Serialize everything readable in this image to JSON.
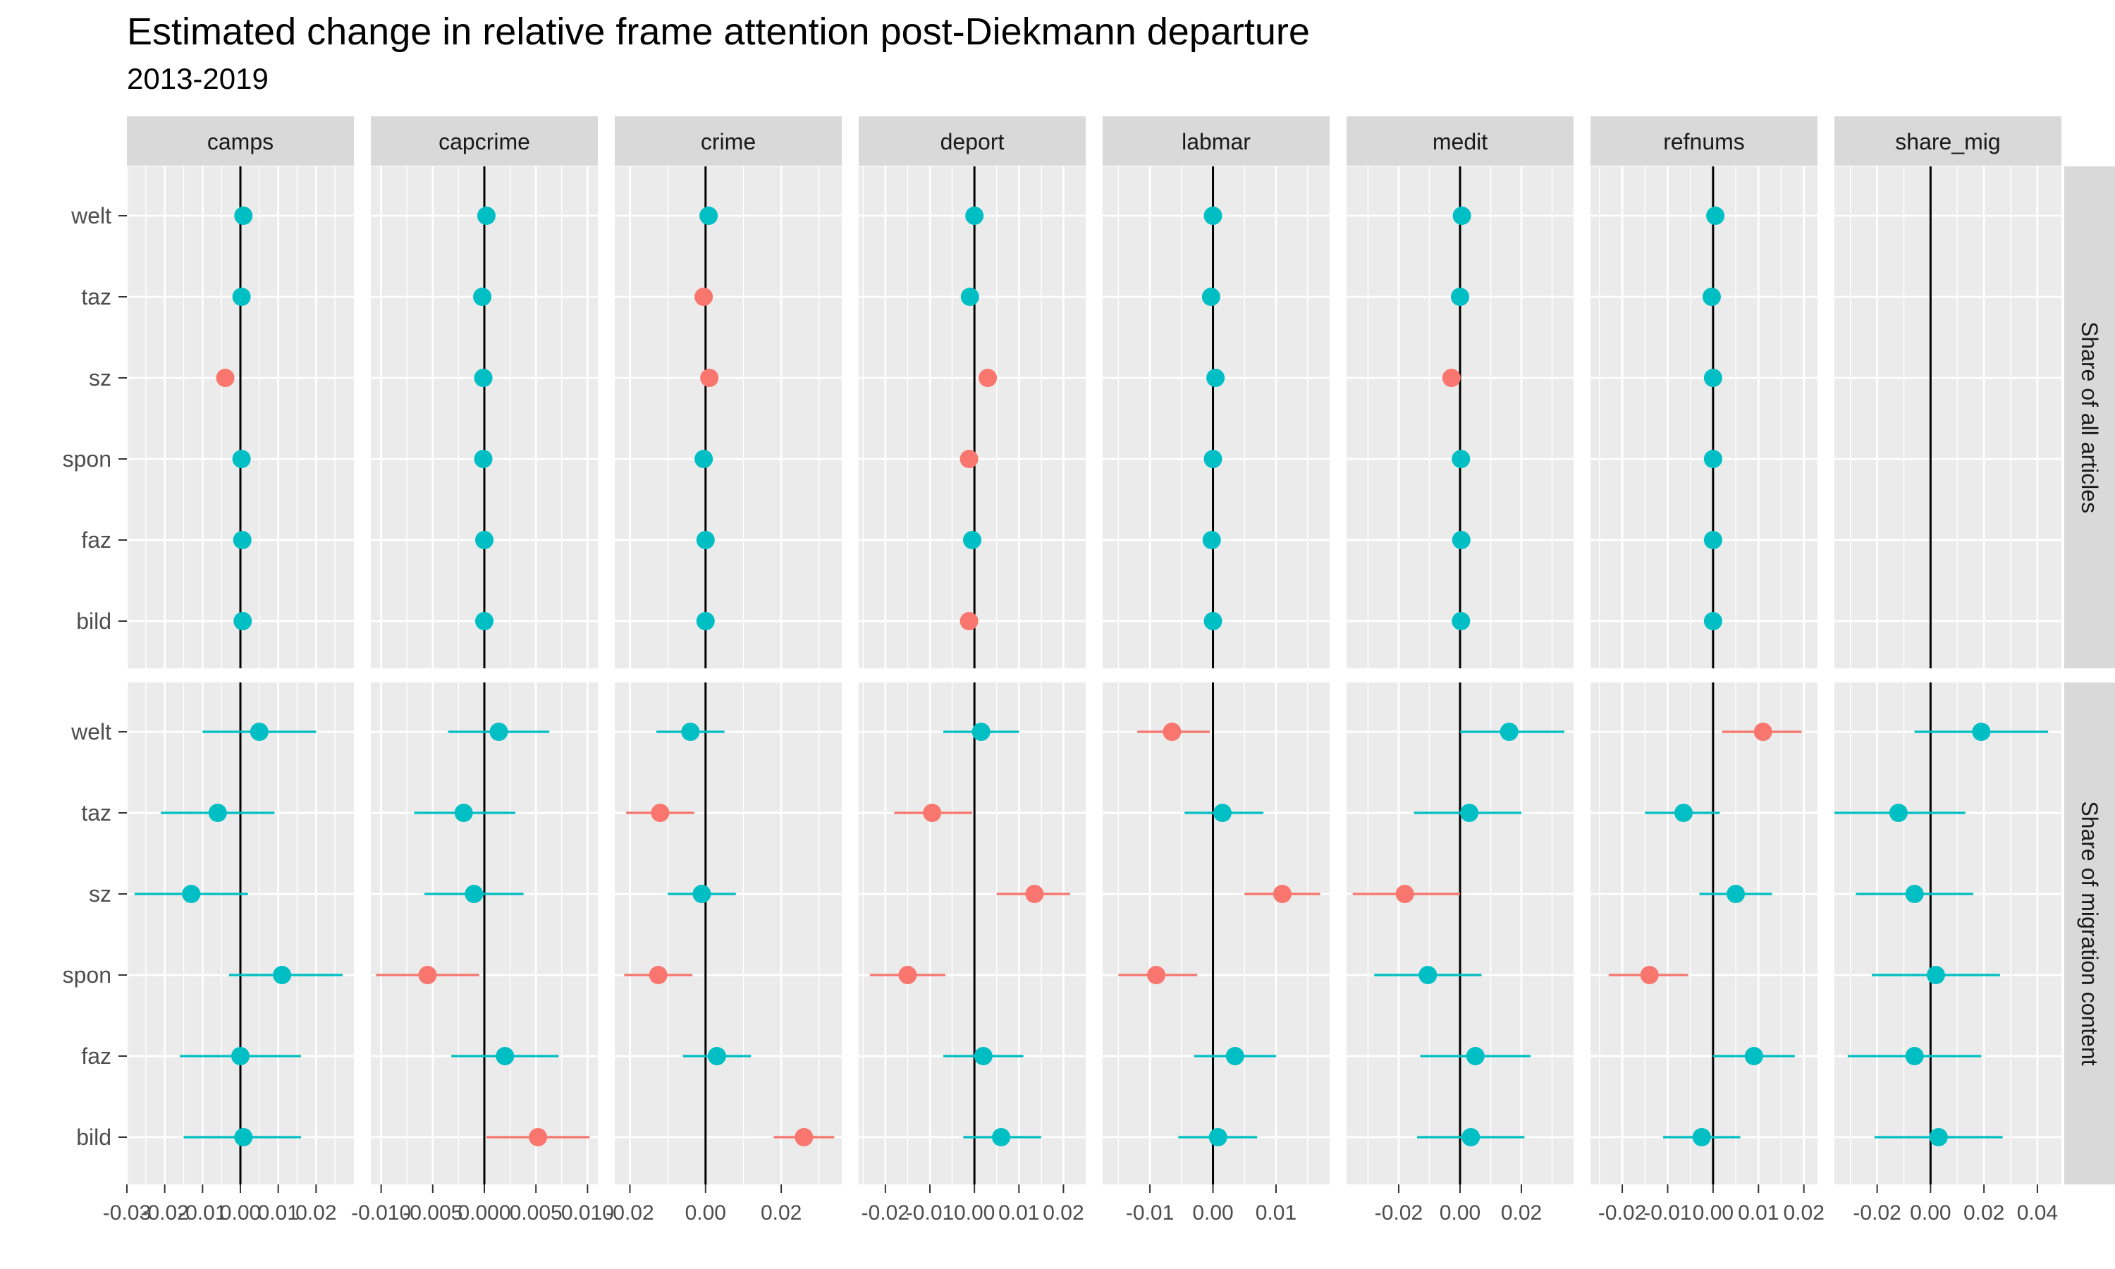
{
  "chart_data": {
    "type": "scatter",
    "title": "Estimated change in relative frame attention post-Diekmann departure",
    "subtitle": "2013-2019",
    "columns": [
      "camps",
      "capcrime",
      "crime",
      "deport",
      "labmar",
      "medit",
      "refnums",
      "share_mig"
    ],
    "rows": [
      "Share of all articles",
      "Share of migration content"
    ],
    "outlets": [
      "welt",
      "taz",
      "sz",
      "spon",
      "faz",
      "bild"
    ],
    "colors": {
      "significant": "#F8766D",
      "not_significant": "#00BFC4",
      "strip": "#D9D9D9",
      "panel": "#EBEBEB",
      "grid": "#FFFFFF"
    },
    "xlim": [
      [
        -0.03,
        0.03
      ],
      [
        -0.011,
        0.011
      ],
      [
        -0.024,
        0.036
      ],
      [
        -0.026,
        0.025
      ],
      [
        -0.0175,
        0.0185
      ],
      [
        -0.037,
        0.037
      ],
      [
        -0.027,
        0.023
      ],
      [
        -0.036,
        0.049
      ]
    ],
    "x_ticks": [
      [
        "-0.03",
        "-0.02",
        "-0.01",
        "0.00",
        "0.01",
        "0.02"
      ],
      [
        "-0.010",
        "-0.005",
        "0.000",
        "0.005",
        "0.010"
      ],
      [
        "-0.02",
        "0.00",
        "0.02"
      ],
      [
        "-0.02",
        "-0.01",
        "0.00",
        "0.01",
        "0.02"
      ],
      [
        "-0.01",
        "0.00",
        "0.01"
      ],
      [
        "-0.02",
        "0.00",
        "0.02"
      ],
      [
        "-0.02",
        "-0.01",
        "0.00",
        "0.01",
        "0.02"
      ],
      [
        "-0.02",
        "0.00",
        "0.02",
        "0.04"
      ]
    ],
    "panels": {
      "camps": {
        "Share of all articles": [
          {
            "outlet": "welt",
            "est": 0.0008,
            "lo": 0.0008,
            "hi": 0.0008,
            "sig": false
          },
          {
            "outlet": "taz",
            "est": 0.0003,
            "lo": 0.0003,
            "hi": 0.0003,
            "sig": false
          },
          {
            "outlet": "sz",
            "est": -0.004,
            "lo": -0.004,
            "hi": -0.004,
            "sig": true
          },
          {
            "outlet": "spon",
            "est": 0.0003,
            "lo": 0.0003,
            "hi": 0.0003,
            "sig": false
          },
          {
            "outlet": "faz",
            "est": 0.0005,
            "lo": 0.0005,
            "hi": 0.0005,
            "sig": false
          },
          {
            "outlet": "bild",
            "est": 0.0006,
            "lo": 0.0006,
            "hi": 0.0006,
            "sig": false
          }
        ],
        "Share of migration content": [
          {
            "outlet": "welt",
            "est": 0.005,
            "lo": -0.01,
            "hi": 0.02,
            "sig": false
          },
          {
            "outlet": "taz",
            "est": -0.006,
            "lo": -0.021,
            "hi": 0.009,
            "sig": false
          },
          {
            "outlet": "sz",
            "est": -0.013,
            "lo": -0.028,
            "hi": 0.002,
            "sig": false
          },
          {
            "outlet": "spon",
            "est": 0.011,
            "lo": -0.003,
            "hi": 0.027,
            "sig": false
          },
          {
            "outlet": "faz",
            "est": 0.0,
            "lo": -0.016,
            "hi": 0.016,
            "sig": false
          },
          {
            "outlet": "bild",
            "est": 0.0008,
            "lo": -0.015,
            "hi": 0.016,
            "sig": false
          }
        ]
      },
      "capcrime": {
        "Share of all articles": [
          {
            "outlet": "welt",
            "est": 0.0002,
            "lo": 0.0002,
            "hi": 0.0002,
            "sig": false
          },
          {
            "outlet": "taz",
            "est": -0.0002,
            "lo": -0.0002,
            "hi": -0.0002,
            "sig": false
          },
          {
            "outlet": "sz",
            "est": -0.0001,
            "lo": -0.0001,
            "hi": -0.0001,
            "sig": false
          },
          {
            "outlet": "spon",
            "est": -0.0001,
            "lo": -0.0001,
            "hi": -0.0001,
            "sig": false
          },
          {
            "outlet": "faz",
            "est": 0.0,
            "lo": 0.0,
            "hi": 0.0,
            "sig": false
          },
          {
            "outlet": "bild",
            "est": 0.0,
            "lo": 0.0,
            "hi": 0.0,
            "sig": false
          }
        ],
        "Share of migration content": [
          {
            "outlet": "welt",
            "est": 0.0014,
            "lo": -0.0035,
            "hi": 0.0063,
            "sig": false
          },
          {
            "outlet": "taz",
            "est": -0.002,
            "lo": -0.0068,
            "hi": 0.003,
            "sig": false
          },
          {
            "outlet": "sz",
            "est": -0.001,
            "lo": -0.0058,
            "hi": 0.0038,
            "sig": false
          },
          {
            "outlet": "spon",
            "est": -0.0055,
            "lo": -0.0105,
            "hi": -0.0005,
            "sig": true
          },
          {
            "outlet": "faz",
            "est": 0.002,
            "lo": -0.0032,
            "hi": 0.0072,
            "sig": false
          },
          {
            "outlet": "bild",
            "est": 0.0052,
            "lo": 0.0002,
            "hi": 0.0102,
            "sig": true
          }
        ]
      },
      "crime": {
        "Share of all articles": [
          {
            "outlet": "welt",
            "est": 0.0008,
            "lo": 0.0008,
            "hi": 0.0008,
            "sig": false
          },
          {
            "outlet": "taz",
            "est": -0.0005,
            "lo": -0.0005,
            "hi": -0.0005,
            "sig": true
          },
          {
            "outlet": "sz",
            "est": 0.001,
            "lo": 0.001,
            "hi": 0.001,
            "sig": true
          },
          {
            "outlet": "spon",
            "est": -0.0005,
            "lo": -0.0005,
            "hi": -0.0005,
            "sig": false
          },
          {
            "outlet": "faz",
            "est": 0.0,
            "lo": 0.0,
            "hi": 0.0,
            "sig": false
          },
          {
            "outlet": "bild",
            "est": 0.0,
            "lo": 0.0,
            "hi": 0.0,
            "sig": false
          }
        ],
        "Share of migration content": [
          {
            "outlet": "welt",
            "est": -0.004,
            "lo": -0.013,
            "hi": 0.005,
            "sig": false
          },
          {
            "outlet": "taz",
            "est": -0.012,
            "lo": -0.021,
            "hi": -0.003,
            "sig": true
          },
          {
            "outlet": "sz",
            "est": -0.001,
            "lo": -0.01,
            "hi": 0.008,
            "sig": false
          },
          {
            "outlet": "spon",
            "est": -0.0125,
            "lo": -0.0215,
            "hi": -0.0035,
            "sig": true
          },
          {
            "outlet": "faz",
            "est": 0.003,
            "lo": -0.006,
            "hi": 0.012,
            "sig": false
          },
          {
            "outlet": "bild",
            "est": 0.026,
            "lo": 0.018,
            "hi": 0.034,
            "sig": true
          }
        ]
      },
      "deport": {
        "Share of all articles": [
          {
            "outlet": "welt",
            "est": 0.0,
            "lo": 0.0,
            "hi": 0.0,
            "sig": false
          },
          {
            "outlet": "taz",
            "est": -0.001,
            "lo": -0.001,
            "hi": -0.001,
            "sig": false
          },
          {
            "outlet": "sz",
            "est": 0.003,
            "lo": 0.003,
            "hi": 0.003,
            "sig": true
          },
          {
            "outlet": "spon",
            "est": -0.0012,
            "lo": -0.0012,
            "hi": -0.0012,
            "sig": true
          },
          {
            "outlet": "faz",
            "est": -0.0005,
            "lo": -0.0005,
            "hi": -0.0005,
            "sig": false
          },
          {
            "outlet": "bild",
            "est": -0.0012,
            "lo": -0.0012,
            "hi": -0.0012,
            "sig": true
          }
        ],
        "Share of migration content": [
          {
            "outlet": "welt",
            "est": 0.0015,
            "lo": -0.007,
            "hi": 0.01,
            "sig": false
          },
          {
            "outlet": "taz",
            "est": -0.0095,
            "lo": -0.018,
            "hi": -0.0005,
            "sig": true
          },
          {
            "outlet": "sz",
            "est": 0.0135,
            "lo": 0.005,
            "hi": 0.0215,
            "sig": true
          },
          {
            "outlet": "spon",
            "est": -0.015,
            "lo": -0.0235,
            "hi": -0.0065,
            "sig": true
          },
          {
            "outlet": "faz",
            "est": 0.002,
            "lo": -0.007,
            "hi": 0.011,
            "sig": false
          },
          {
            "outlet": "bild",
            "est": 0.006,
            "lo": -0.0025,
            "hi": 0.015,
            "sig": false
          }
        ]
      },
      "labmar": {
        "Share of all articles": [
          {
            "outlet": "welt",
            "est": 0.0,
            "lo": 0.0,
            "hi": 0.0,
            "sig": false
          },
          {
            "outlet": "taz",
            "est": -0.0003,
            "lo": -0.0003,
            "hi": -0.0003,
            "sig": false
          },
          {
            "outlet": "sz",
            "est": 0.0004,
            "lo": 0.0004,
            "hi": 0.0004,
            "sig": false
          },
          {
            "outlet": "spon",
            "est": 0.0,
            "lo": 0.0,
            "hi": 0.0,
            "sig": false
          },
          {
            "outlet": "faz",
            "est": -0.0002,
            "lo": -0.0002,
            "hi": -0.0002,
            "sig": false
          },
          {
            "outlet": "bild",
            "est": 0.0,
            "lo": 0.0,
            "hi": 0.0,
            "sig": false
          }
        ],
        "Share of migration content": [
          {
            "outlet": "welt",
            "est": -0.0065,
            "lo": -0.012,
            "hi": -0.0005,
            "sig": true
          },
          {
            "outlet": "taz",
            "est": 0.0015,
            "lo": -0.0045,
            "hi": 0.008,
            "sig": false
          },
          {
            "outlet": "sz",
            "est": 0.011,
            "lo": 0.005,
            "hi": 0.017,
            "sig": true
          },
          {
            "outlet": "spon",
            "est": -0.009,
            "lo": -0.015,
            "hi": -0.0025,
            "sig": true
          },
          {
            "outlet": "faz",
            "est": 0.0035,
            "lo": -0.003,
            "hi": 0.01,
            "sig": false
          },
          {
            "outlet": "bild",
            "est": 0.0008,
            "lo": -0.0055,
            "hi": 0.007,
            "sig": false
          }
        ]
      },
      "medit": {
        "Share of all articles": [
          {
            "outlet": "welt",
            "est": 0.0006,
            "lo": 0.0006,
            "hi": 0.0006,
            "sig": false
          },
          {
            "outlet": "taz",
            "est": 0.0,
            "lo": 0.0,
            "hi": 0.0,
            "sig": false
          },
          {
            "outlet": "sz",
            "est": -0.0028,
            "lo": -0.0028,
            "hi": -0.0028,
            "sig": true
          },
          {
            "outlet": "spon",
            "est": 0.0003,
            "lo": 0.0003,
            "hi": 0.0003,
            "sig": false
          },
          {
            "outlet": "faz",
            "est": 0.0004,
            "lo": 0.0004,
            "hi": 0.0004,
            "sig": false
          },
          {
            "outlet": "bild",
            "est": 0.0003,
            "lo": 0.0003,
            "hi": 0.0003,
            "sig": false
          }
        ],
        "Share of migration content": [
          {
            "outlet": "welt",
            "est": 0.016,
            "lo": 0.0,
            "hi": 0.034,
            "sig": false
          },
          {
            "outlet": "taz",
            "est": 0.003,
            "lo": -0.015,
            "hi": 0.02,
            "sig": false
          },
          {
            "outlet": "sz",
            "est": -0.018,
            "lo": -0.035,
            "hi": 0.0,
            "sig": true
          },
          {
            "outlet": "spon",
            "est": -0.0105,
            "lo": -0.028,
            "hi": 0.007,
            "sig": false
          },
          {
            "outlet": "faz",
            "est": 0.005,
            "lo": -0.013,
            "hi": 0.023,
            "sig": false
          },
          {
            "outlet": "bild",
            "est": 0.0035,
            "lo": -0.014,
            "hi": 0.021,
            "sig": false
          }
        ]
      },
      "refnums": {
        "Share of all articles": [
          {
            "outlet": "welt",
            "est": 0.0005,
            "lo": 0.0005,
            "hi": 0.0005,
            "sig": false
          },
          {
            "outlet": "taz",
            "est": -0.0003,
            "lo": -0.0003,
            "hi": -0.0003,
            "sig": false
          },
          {
            "outlet": "sz",
            "est": 0.0,
            "lo": 0.0,
            "hi": 0.0,
            "sig": false
          },
          {
            "outlet": "spon",
            "est": 0.0,
            "lo": 0.0,
            "hi": 0.0,
            "sig": false
          },
          {
            "outlet": "faz",
            "est": 0.0,
            "lo": 0.0,
            "hi": 0.0,
            "sig": false
          },
          {
            "outlet": "bild",
            "est": 0.0,
            "lo": 0.0,
            "hi": 0.0,
            "sig": false
          }
        ],
        "Share of migration content": [
          {
            "outlet": "welt",
            "est": 0.011,
            "lo": 0.002,
            "hi": 0.0195,
            "sig": true
          },
          {
            "outlet": "taz",
            "est": -0.0065,
            "lo": -0.015,
            "hi": 0.0015,
            "sig": false
          },
          {
            "outlet": "sz",
            "est": 0.005,
            "lo": -0.003,
            "hi": 0.013,
            "sig": false
          },
          {
            "outlet": "spon",
            "est": -0.014,
            "lo": -0.023,
            "hi": -0.0055,
            "sig": true
          },
          {
            "outlet": "faz",
            "est": 0.009,
            "lo": 0.0,
            "hi": 0.018,
            "sig": false
          },
          {
            "outlet": "bild",
            "est": -0.0025,
            "lo": -0.011,
            "hi": 0.006,
            "sig": false
          }
        ]
      },
      "share_mig": {
        "Share of all articles": [],
        "Share of migration content": [
          {
            "outlet": "welt",
            "est": 0.019,
            "lo": -0.006,
            "hi": 0.044,
            "sig": false
          },
          {
            "outlet": "taz",
            "est": -0.012,
            "lo": -0.036,
            "hi": 0.013,
            "sig": false
          },
          {
            "outlet": "sz",
            "est": -0.006,
            "lo": -0.028,
            "hi": 0.016,
            "sig": false
          },
          {
            "outlet": "spon",
            "est": 0.002,
            "lo": -0.022,
            "hi": 0.026,
            "sig": false
          },
          {
            "outlet": "faz",
            "est": -0.006,
            "lo": -0.031,
            "hi": 0.019,
            "sig": false
          },
          {
            "outlet": "bild",
            "est": 0.003,
            "lo": -0.021,
            "hi": 0.027,
            "sig": false
          }
        ]
      }
    }
  }
}
